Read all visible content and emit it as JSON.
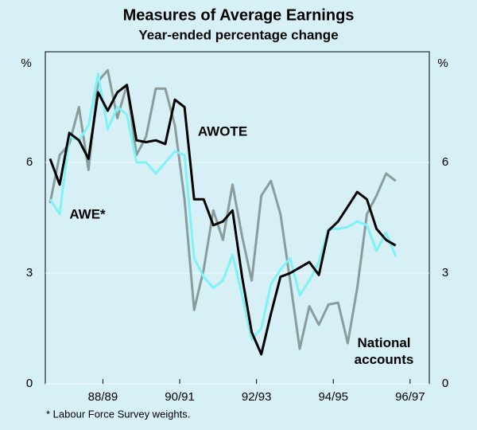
{
  "chart_data": {
    "type": "line",
    "title": "Measures of Average Earnings",
    "subtitle": "Year-ended percentage change",
    "y_label": "%",
    "y2_label": "%",
    "footnote": "* Labour Force Survey weights.",
    "x": [
      1987.375,
      1987.625,
      1987.875,
      1988.125,
      1988.375,
      1988.625,
      1988.875,
      1989.125,
      1989.375,
      1989.625,
      1989.875,
      1990.125,
      1990.375,
      1990.625,
      1990.875,
      1991.125,
      1991.375,
      1991.625,
      1991.875,
      1992.125,
      1992.375,
      1992.625,
      1992.875,
      1993.125,
      1993.375,
      1993.625,
      1993.875,
      1994.125,
      1994.375,
      1994.625,
      1994.875,
      1995.125,
      1995.375,
      1995.625,
      1995.875,
      1996.125,
      1996.375,
      1996.625
    ],
    "series": [
      {
        "name": "National accounts",
        "color": "#8a9c9c",
        "values": [
          4.9,
          6.2,
          6.5,
          7.5,
          5.8,
          8.2,
          8.5,
          7.2,
          8.1,
          6.2,
          6.7,
          8.0,
          8.0,
          7.0,
          5.0,
          2.0,
          3.1,
          4.7,
          3.9,
          5.4,
          4.0,
          2.8,
          5.1,
          5.5,
          4.6,
          2.8,
          0.95,
          2.1,
          1.6,
          2.15,
          2.2,
          1.1,
          2.6,
          4.6,
          5.1,
          5.7,
          5.5,
          null
        ]
      },
      {
        "name": "AWE*",
        "color": "#7ff2f6",
        "values": [
          5.0,
          4.6,
          6.7,
          6.6,
          7.0,
          8.4,
          6.9,
          7.5,
          7.3,
          6.0,
          6.0,
          5.7,
          6.0,
          6.3,
          6.2,
          3.4,
          2.9,
          2.6,
          2.8,
          3.5,
          2.4,
          1.2,
          1.5,
          2.7,
          3.1,
          3.4,
          2.4,
          2.8,
          3.3,
          4.2,
          4.2,
          4.25,
          4.4,
          4.3,
          3.6,
          4.1,
          3.45,
          null
        ]
      },
      {
        "name": "AWOTE",
        "color": "#000000",
        "values": [
          6.1,
          5.4,
          6.8,
          6.6,
          6.1,
          7.9,
          7.4,
          7.9,
          8.1,
          6.6,
          6.55,
          6.6,
          6.5,
          7.7,
          7.5,
          5.0,
          5.0,
          4.3,
          4.4,
          4.7,
          2.9,
          1.4,
          0.8,
          1.9,
          2.9,
          3.0,
          3.15,
          3.3,
          2.95,
          4.15,
          4.4,
          4.8,
          5.2,
          5.0,
          4.2,
          3.9,
          3.75,
          null
        ]
      }
    ],
    "xlim": [
      1987.25,
      1997.25
    ],
    "xticks": [
      {
        "value": 1988.75,
        "label": "88/89"
      },
      {
        "value": 1990.75,
        "label": "90/91"
      },
      {
        "value": 1992.75,
        "label": "92/93"
      },
      {
        "value": 1994.75,
        "label": "94/95"
      },
      {
        "value": 1996.75,
        "label": "96/97"
      }
    ],
    "ylim": [
      0,
      9
    ],
    "yticks": [
      0,
      3,
      6
    ],
    "grid": true
  }
}
